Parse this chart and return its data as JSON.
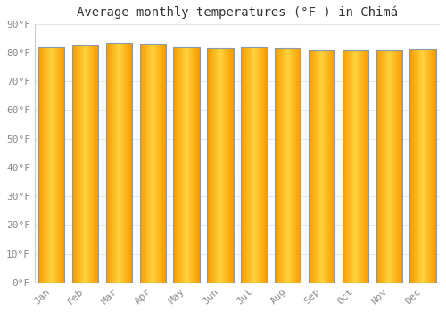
{
  "title": "Average monthly temperatures (°F ) in Chimá",
  "months": [
    "Jan",
    "Feb",
    "Mar",
    "Apr",
    "May",
    "Jun",
    "Jul",
    "Aug",
    "Sep",
    "Oct",
    "Nov",
    "Dec"
  ],
  "values": [
    82.0,
    82.5,
    83.5,
    83.2,
    82.0,
    81.7,
    82.0,
    81.7,
    81.0,
    81.0,
    81.0,
    81.2
  ],
  "ylim": [
    0,
    90
  ],
  "yticks": [
    0,
    10,
    20,
    30,
    40,
    50,
    60,
    70,
    80,
    90
  ],
  "bar_color_center": "#FFD040",
  "bar_color_edge": "#F89B00",
  "bar_border_color": "#8899AA",
  "background_color": "#FFFFFF",
  "grid_color": "#E0E8F0",
  "tick_label_color": "#888888",
  "title_color": "#333333",
  "title_fontsize": 10,
  "tick_fontsize": 8
}
